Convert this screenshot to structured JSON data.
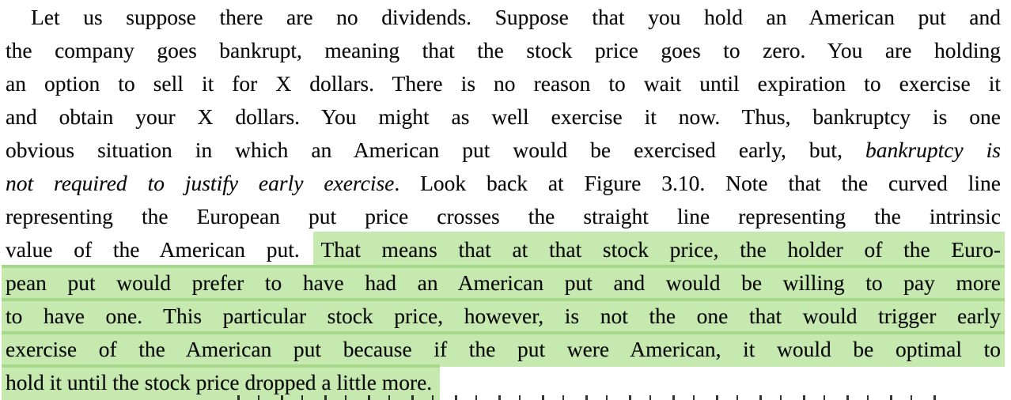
{
  "document": {
    "type": "book-page-excerpt",
    "colors": {
      "background": "#ffffff",
      "text": "#0a0a0a",
      "highlight": "#c6e9b0",
      "highlight_overlap_band": "#a6d98c"
    },
    "paragraph": {
      "lines": [
        {
          "indent": true,
          "align": "justify",
          "segments": [
            {
              "text": "Let us suppose there are no dividends. Suppose that you hold an American put and",
              "italic": false,
              "hl": false
            }
          ]
        },
        {
          "align": "justify",
          "segments": [
            {
              "text": "the company goes bankrupt, meaning that the stock price goes to zero. You are holding",
              "italic": false,
              "hl": false
            }
          ]
        },
        {
          "align": "justify",
          "segments": [
            {
              "text": "an option to sell it for X dollars. There is no reason to wait until expiration to exercise it",
              "italic": false,
              "hl": false
            }
          ]
        },
        {
          "align": "justify",
          "segments": [
            {
              "text": "and obtain your X dollars. You might as well exercise it now. Thus, bankruptcy is one",
              "italic": false,
              "hl": false
            }
          ]
        },
        {
          "align": "justify",
          "segments": [
            {
              "text": "obvious situation in which an American put would be exercised early, but, ",
              "italic": false,
              "hl": false
            },
            {
              "text": "bankruptcy is",
              "italic": true,
              "hl": false
            }
          ]
        },
        {
          "align": "justify",
          "segments": [
            {
              "text": "not required to justify early exercise",
              "italic": true,
              "hl": false
            },
            {
              "text": ". Look back at Figure 3.10. Note that the curved line",
              "italic": false,
              "hl": false
            }
          ]
        },
        {
          "align": "justify",
          "segments": [
            {
              "text": "representing the European put price crosses the straight line representing the intrinsic",
              "italic": false,
              "hl": false
            }
          ]
        },
        {
          "align": "justify",
          "segments": [
            {
              "text": "value of the American put. ",
              "italic": false,
              "hl": false
            },
            {
              "text": "That means that at that stock price, the holder of the Euro-",
              "italic": false,
              "hl": true,
              "hl_start": true,
              "band": false
            }
          ]
        },
        {
          "align": "justify",
          "segments": [
            {
              "text": "pean put would prefer to have had an American put and would be willing to pay more",
              "italic": false,
              "hl": true,
              "band": true
            }
          ]
        },
        {
          "align": "justify",
          "segments": [
            {
              "text": "to have one. This particular stock price, however, is not the one that would trigger early",
              "italic": false,
              "hl": true,
              "band": true
            }
          ]
        },
        {
          "align": "justify",
          "segments": [
            {
              "text": "exercise of the American put because if the put were American, it would be optimal to",
              "italic": false,
              "hl": true,
              "band": true
            }
          ]
        },
        {
          "align": "left",
          "segments": [
            {
              "text": "hold it until the stock price dropped a little more.",
              "italic": false,
              "hl": true,
              "band": true,
              "hl_end": true
            }
          ]
        }
      ]
    },
    "next_line_clipped": true
  }
}
